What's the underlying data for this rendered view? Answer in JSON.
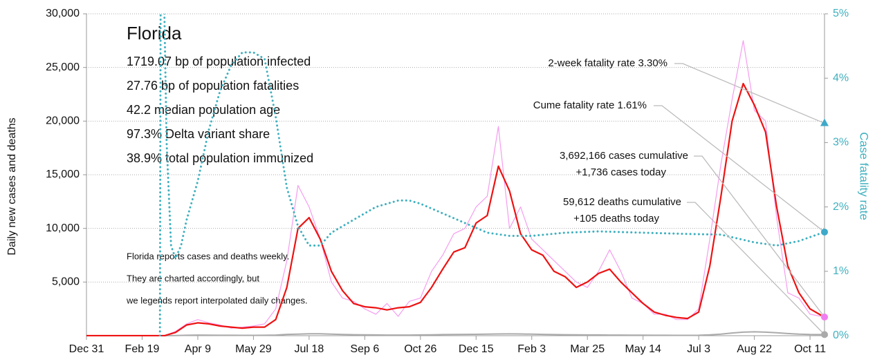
{
  "chart_data": {
    "type": "line",
    "title": "Florida",
    "info_lines": [
      "1719.07 bp of population infected",
      "27.76 bp of population fatalities",
      "42.2 median population age",
      "97.3% Delta variant share",
      "38.9% total population immunized"
    ],
    "notes": [
      "Florida reports cases and deaths weekly.",
      "They are charted accordingly, but",
      "we legends report interpolated daily changes."
    ],
    "y_label": "Daily new cases and deaths",
    "y2_label": "Case fatality rate",
    "xlim": [
      0,
      663
    ],
    "xticks": [
      {
        "value": 0,
        "label": "Dec 31"
      },
      {
        "value": 50,
        "label": "Feb 19"
      },
      {
        "value": 100,
        "label": "Apr 9"
      },
      {
        "value": 150,
        "label": "May 29"
      },
      {
        "value": 200,
        "label": "Jul 18"
      },
      {
        "value": 250,
        "label": "Sep 6"
      },
      {
        "value": 300,
        "label": "Oct 26"
      },
      {
        "value": 350,
        "label": "Dec 15"
      },
      {
        "value": 400,
        "label": "Feb 3"
      },
      {
        "value": 450,
        "label": "Mar 25"
      },
      {
        "value": 500,
        "label": "May 14"
      },
      {
        "value": 550,
        "label": "Jul 3"
      },
      {
        "value": 600,
        "label": "Aug 22"
      },
      {
        "value": 650,
        "label": "Oct 11"
      }
    ],
    "ylim": [
      0,
      30000
    ],
    "yticks": [
      {
        "value": 5000,
        "label": "5,000"
      },
      {
        "value": 10000,
        "label": "10,000"
      },
      {
        "value": 15000,
        "label": "15,000"
      },
      {
        "value": 20000,
        "label": "20,000"
      },
      {
        "value": 25000,
        "label": "25,000"
      },
      {
        "value": 30000,
        "label": "30,000"
      }
    ],
    "y2lim": [
      0,
      5
    ],
    "y2ticks": [
      {
        "value": 0,
        "label": "0%"
      },
      {
        "value": 1,
        "label": "1%"
      },
      {
        "value": 2,
        "label": "2%"
      },
      {
        "value": 3,
        "label": "3%"
      },
      {
        "value": 4,
        "label": "4%"
      },
      {
        "value": 5,
        "label": "5%"
      }
    ],
    "grid": true,
    "x": [
      0,
      10,
      20,
      30,
      40,
      50,
      60,
      70,
      80,
      90,
      100,
      110,
      120,
      130,
      140,
      150,
      160,
      170,
      180,
      190,
      200,
      210,
      220,
      230,
      240,
      250,
      260,
      270,
      280,
      290,
      300,
      310,
      320,
      330,
      340,
      350,
      360,
      370,
      380,
      390,
      400,
      410,
      420,
      430,
      440,
      450,
      460,
      470,
      480,
      490,
      500,
      510,
      520,
      530,
      540,
      550,
      560,
      570,
      580,
      590,
      600,
      610,
      620,
      630,
      640,
      650,
      660
    ],
    "series": [
      {
        "name": "Daily cases",
        "color": "#f59cf0",
        "width": 1.2,
        "values": [
          0,
          0,
          0,
          0,
          0,
          0,
          0,
          0,
          400,
          1100,
          1500,
          1200,
          1000,
          700,
          800,
          900,
          1100,
          2500,
          7000,
          14000,
          12000,
          9000,
          5000,
          3500,
          3200,
          2500,
          2000,
          3000,
          1800,
          3200,
          3500,
          6000,
          7500,
          9500,
          10000,
          12000,
          13000,
          19500,
          10000,
          12000,
          9000,
          8000,
          7000,
          6000,
          5000,
          4500,
          6000,
          8000,
          6000,
          3500,
          3000,
          2000,
          2000,
          1500,
          1500,
          2500,
          9000,
          16000,
          22000,
          27500,
          21000,
          20000,
          11000,
          4000,
          3500,
          2000,
          1800
        ]
      },
      {
        "name": "Daily deaths",
        "color": "#aaaaaa",
        "width": 2,
        "values": [
          0,
          0,
          0,
          0,
          0,
          0,
          0,
          0,
          10,
          40,
          60,
          50,
          40,
          40,
          30,
          30,
          40,
          60,
          120,
          150,
          180,
          180,
          150,
          110,
          90,
          80,
          70,
          60,
          60,
          60,
          70,
          80,
          100,
          110,
          120,
          130,
          150,
          160,
          170,
          160,
          140,
          120,
          100,
          90,
          80,
          70,
          70,
          60,
          60,
          50,
          50,
          40,
          40,
          30,
          30,
          40,
          80,
          150,
          250,
          330,
          360,
          330,
          280,
          200,
          140,
          110,
          105
        ]
      },
      {
        "name": "7-day average cases",
        "color": "#ee1111",
        "width": 2.2,
        "values": [
          0,
          0,
          0,
          0,
          0,
          0,
          0,
          0,
          300,
          1000,
          1200,
          1100,
          900,
          800,
          700,
          800,
          800,
          1500,
          4500,
          10000,
          11000,
          9000,
          6000,
          4200,
          3000,
          2700,
          2600,
          2400,
          2600,
          2700,
          3100,
          4500,
          6200,
          7800,
          8200,
          10500,
          11200,
          15800,
          13500,
          9500,
          8000,
          7500,
          6000,
          5500,
          4500,
          5000,
          5800,
          6200,
          5000,
          4000,
          3000,
          2200,
          1900,
          1700,
          1600,
          2200,
          6500,
          13000,
          20000,
          23500,
          21500,
          19000,
          12000,
          6500,
          4000,
          2500,
          1900
        ]
      },
      {
        "name": "Case fatality rate",
        "color": "#3fb0bf",
        "width": 3,
        "axis": "y2",
        "dotted": true,
        "x": [
          66,
          67,
          72,
          76,
          80,
          85,
          90,
          100,
          110,
          120,
          130,
          140,
          150,
          160,
          170,
          180,
          190,
          200,
          210,
          220,
          240,
          260,
          280,
          290,
          300,
          320,
          340,
          360,
          380,
          400,
          430,
          460,
          500,
          540,
          570,
          600,
          620,
          640,
          663
        ],
        "values": [
          0,
          8,
          3.0,
          1.4,
          1.2,
          1.4,
          1.8,
          2.4,
          3.2,
          3.8,
          4.2,
          4.4,
          4.4,
          4.3,
          3.4,
          2.3,
          1.7,
          1.4,
          1.4,
          1.6,
          1.8,
          2.0,
          2.1,
          2.1,
          2.05,
          1.9,
          1.75,
          1.6,
          1.55,
          1.55,
          1.6,
          1.62,
          1.6,
          1.58,
          1.57,
          1.45,
          1.4,
          1.47,
          1.61
        ]
      }
    ],
    "end_markers": [
      {
        "label": [
          "2-week fatality rate 3.30%"
        ],
        "value": 3.3,
        "axis": "y2",
        "shape": "triangle",
        "color": "#3fa9c9"
      },
      {
        "label": [
          "Cume fatality rate 1.61%"
        ],
        "value": 1.61,
        "axis": "y2",
        "shape": "circle",
        "color": "#3fa9c9"
      },
      {
        "label": [
          "3,692,166 cases cumulative",
          "+1,736 cases today"
        ],
        "value": 1736,
        "axis": "y",
        "shape": "circle",
        "color": "#f07ef0"
      },
      {
        "label": [
          "59,612 deaths cumulative",
          "+105 deaths today"
        ],
        "value": 105,
        "axis": "y",
        "shape": "circle",
        "color": "#aaaaaa"
      }
    ]
  }
}
